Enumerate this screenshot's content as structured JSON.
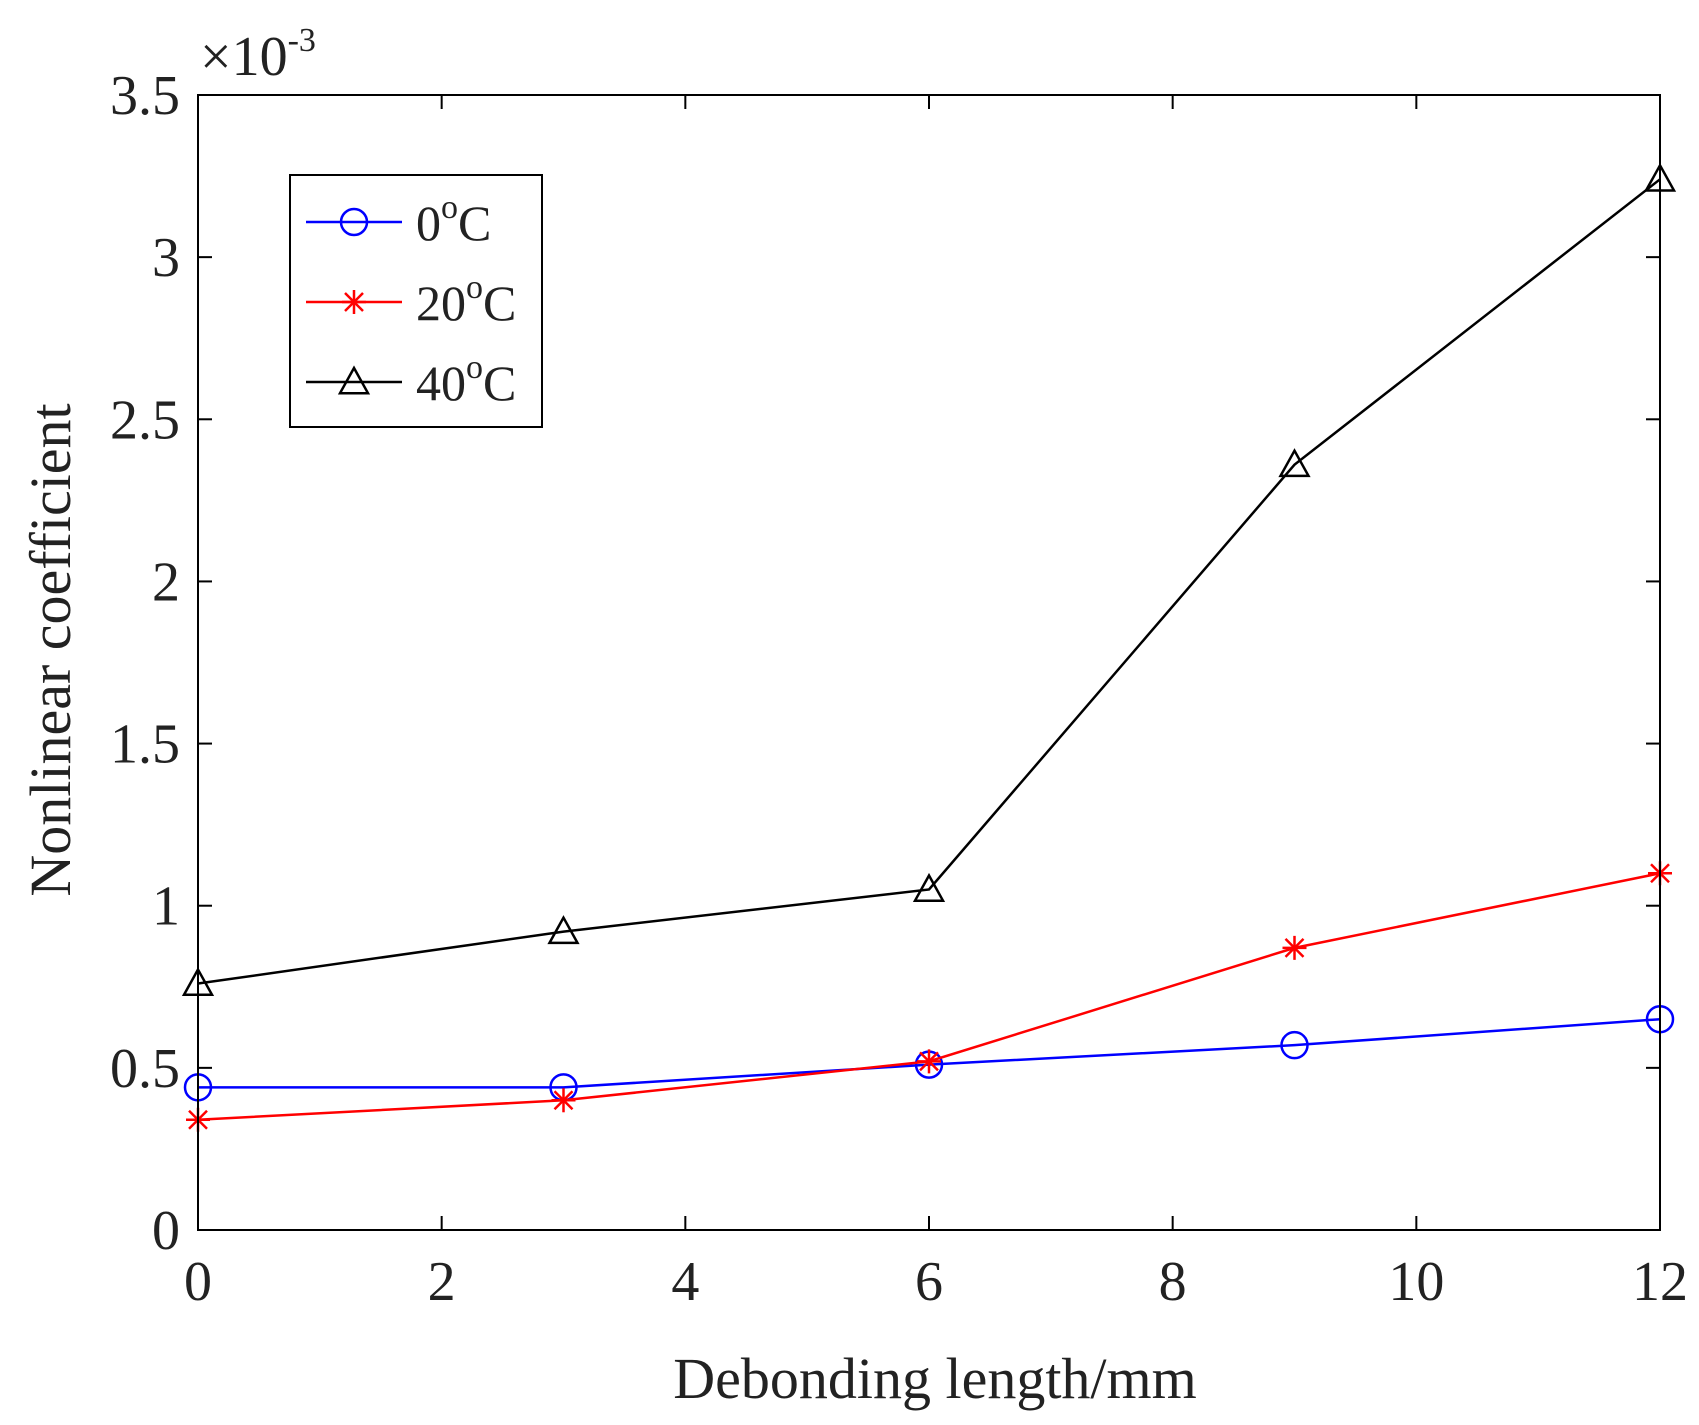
{
  "chart_data": {
    "type": "line",
    "title": "",
    "xlabel": "Debonding length/mm",
    "ylabel": "Nonlinear coefficient",
    "x": [
      0,
      3,
      6,
      9,
      12
    ],
    "xlim": [
      0,
      12
    ],
    "ylim": [
      0,
      0.0035
    ],
    "xticks": [
      "0",
      "2",
      "4",
      "6",
      "8",
      "10",
      "12"
    ],
    "yticks": [
      "0",
      "0.5",
      "1",
      "1.5",
      "2",
      "2.5",
      "3",
      "3.5"
    ],
    "exponent": {
      "base": "×10",
      "power": "-3"
    },
    "grid": false,
    "legend_position": "top-left",
    "series": [
      {
        "name": "0oC",
        "name_base": "0",
        "name_sup": "o",
        "name_tail": "C",
        "color": "#0000ff",
        "marker": "circle",
        "values": [
          0.00044,
          0.00044,
          0.00051,
          0.00057,
          0.00065
        ]
      },
      {
        "name": "20oC",
        "name_base": "20",
        "name_sup": "o",
        "name_tail": "C",
        "color": "#ff0000",
        "marker": "star",
        "values": [
          0.00034,
          0.0004,
          0.00052,
          0.00087,
          0.0011
        ]
      },
      {
        "name": "40oC",
        "name_base": "40",
        "name_sup": "o",
        "name_tail": "C",
        "color": "#000000",
        "marker": "triangle",
        "values": [
          0.00076,
          0.00092,
          0.00105,
          0.00236,
          0.00324
        ]
      }
    ]
  }
}
